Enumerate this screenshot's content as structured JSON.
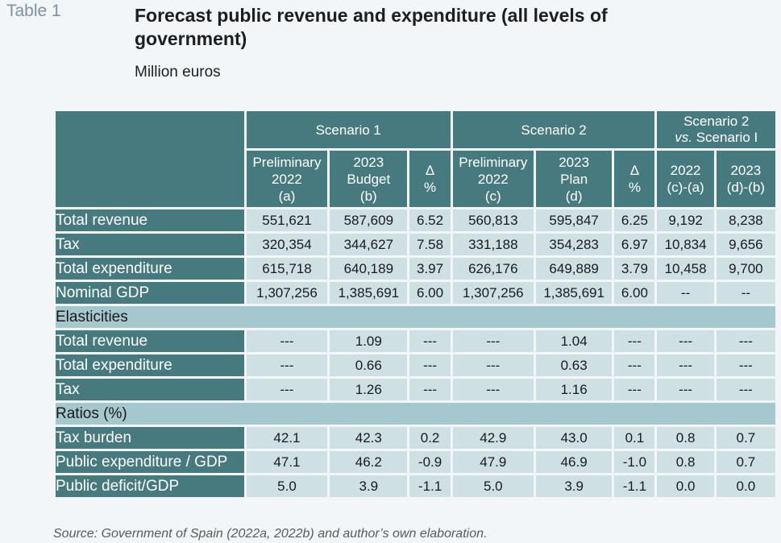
{
  "table_label": "Table 1",
  "title": "Forecast public revenue and expenditure (all levels of government)",
  "subtitle": "Million euros",
  "header": {
    "scenario1": "Scenario 1",
    "scenario2": "Scenario 2",
    "vs_line1": "Scenario 2",
    "vs_line2_italic": "vs.",
    "vs_line2_rest": " Scenario I",
    "cols": [
      [
        "Preliminary",
        "2022",
        "(a)"
      ],
      [
        "2023",
        "Budget",
        "(b)"
      ],
      [
        "Δ",
        "%"
      ],
      [
        "Preliminary",
        "2022",
        "(c)"
      ],
      [
        "2023",
        "Plan",
        "(d)"
      ],
      [
        "Δ",
        "%"
      ],
      [
        "2022",
        "(c)-(a)"
      ],
      [
        "2023",
        "(d)-(b)"
      ]
    ]
  },
  "rows": [
    {
      "label": "Total revenue",
      "values": [
        "551,621",
        "587,609",
        "6.52",
        "560,813",
        "595,847",
        "6.25",
        "9,192",
        "8,238"
      ]
    },
    {
      "label": "Tax",
      "values": [
        "320,354",
        "344,627",
        "7.58",
        "331,188",
        "354,283",
        "6.97",
        "10,834",
        "9,656"
      ]
    },
    {
      "label": "Total expenditure",
      "values": [
        "615,718",
        "640,189",
        "3.97",
        "626,176",
        "649,889",
        "3.79",
        "10,458",
        "9,700"
      ]
    },
    {
      "label": "Nominal GDP",
      "values": [
        "1,307,256",
        "1,385,691",
        "6.00",
        "1,307,256",
        "1,385,691",
        "6.00",
        "--",
        "--"
      ]
    }
  ],
  "elasticities": {
    "label": "Elasticities",
    "rows": [
      {
        "label": "Total revenue",
        "values": [
          "---",
          "1.09",
          "---",
          "---",
          "1.04",
          "---",
          "---",
          "---"
        ]
      },
      {
        "label": "Total expenditure",
        "values": [
          "---",
          "0.66",
          "---",
          "---",
          "0.63",
          "---",
          "---",
          "---"
        ]
      },
      {
        "label": "Tax",
        "values": [
          "---",
          "1.26",
          "---",
          "---",
          "1.16",
          "---",
          "---",
          "---"
        ]
      }
    ]
  },
  "ratios": {
    "label": "Ratios (%)",
    "rows": [
      {
        "label": "Tax burden",
        "values": [
          "42.1",
          "42.3",
          "0.2",
          "42.9",
          "43.0",
          "0.1",
          "0.8",
          "0.7"
        ]
      },
      {
        "label": "Public expenditure / GDP",
        "values": [
          "47.1",
          "46.2",
          "-0.9",
          "47.9",
          "46.9",
          "-1.0",
          "0.8",
          "0.7"
        ]
      },
      {
        "label": "Public deficit/GDP",
        "values": [
          "5.0",
          "3.9",
          "-1.1",
          "5.0",
          "3.9",
          "-1.1",
          "0.0",
          "0.0"
        ]
      }
    ]
  },
  "source": "Source: Government of Spain (2022a, 2022b) and author’s own elaboration."
}
